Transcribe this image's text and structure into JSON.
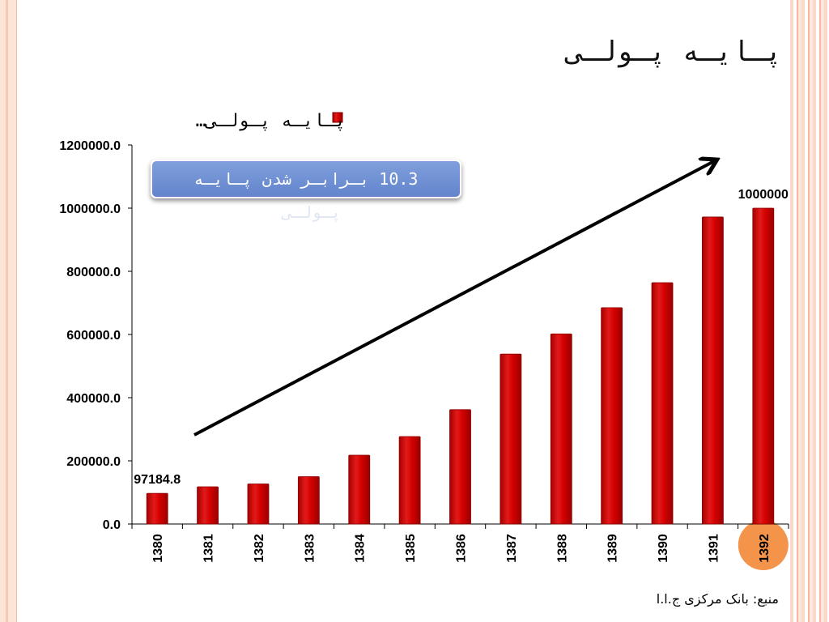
{
  "slide": {
    "title": "پـایـه پـولـی",
    "callout_line1": "10.3 بـرابـر شدن پـایـه",
    "callout_line2": "پـولـی",
    "source": "منبع: بانک مرکزی ج.ا.ا"
  },
  "colors": {
    "bar": "#cc0000",
    "arrow": "#000000",
    "callout": "#6f8fd6",
    "highlight": "#f4934a"
  },
  "chart_data": {
    "type": "bar",
    "title": "",
    "legend": {
      "label": "پـایـه پـولـی…",
      "position": "top"
    },
    "categories": [
      "1380",
      "1381",
      "1382",
      "1383",
      "1384",
      "1385",
      "1386",
      "1387",
      "1388",
      "1389",
      "1390",
      "1391",
      "1392"
    ],
    "series": [
      {
        "name": "پـایـه پـولـی…",
        "values": [
          97184.8,
          118000,
          127000,
          150000,
          218000,
          277000,
          362000,
          538000,
          602000,
          685000,
          764000,
          972000,
          1000000
        ]
      }
    ],
    "data_labels": [
      {
        "index": 0,
        "text": "97184.8"
      },
      {
        "index": 12,
        "text": "1000000"
      }
    ],
    "ylim": [
      0,
      1200000
    ],
    "yticks": [
      "0.0",
      "200000.0",
      "400000.0",
      "600000.0",
      "800000.0",
      "1000000.0",
      "1200000.0"
    ],
    "highlighted_category": "1392",
    "trend_arrow": true
  }
}
